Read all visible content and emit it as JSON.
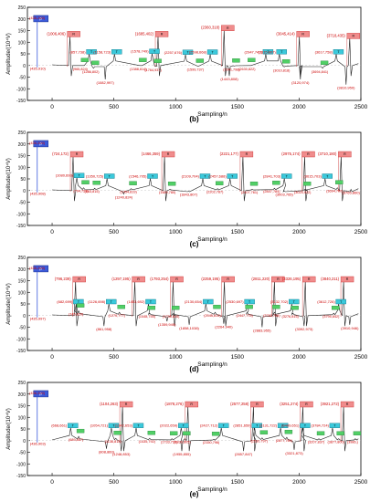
{
  "figure": {
    "panels": [
      "b",
      "c",
      "d",
      "e"
    ]
  },
  "chart_data": [
    {
      "id": "b",
      "caption": "(b)",
      "type": "line",
      "xlabel": "Sampling/n",
      "ylabel": "Amplitude/(10⁴V)",
      "xlim": [
        -200,
        2500
      ],
      "ylim": [
        -150,
        250
      ],
      "xticks": [
        0,
        500,
        1000,
        1500,
        2000,
        2500
      ],
      "yticks": [
        -150,
        -100,
        -50,
        0,
        50,
        100,
        150,
        200,
        250
      ],
      "legend": "P",
      "legend_x": 435,
      "legend_y": 200,
      "x0_label": "(435,910)",
      "top_peaks": [
        [
          145,
          127,
          "(1006,406)"
        ],
        [
          858,
          127,
          "(1685,402)"
        ],
        [
          1393,
          153,
          "(2360,318)"
        ],
        [
          2002,
          127,
          "(3045,414)"
        ],
        [
          2410,
          119,
          "(3718,435)"
        ]
      ],
      "mid_peaks": [
        [
          300,
          49,
          "(857,738)"
        ],
        [
          505,
          49,
          "(1158,723)"
        ],
        [
          810,
          51,
          "(1578,749)"
        ],
        [
          1080,
          47,
          "(2257,676)"
        ],
        [
          1280,
          48,
          "(2598,668)"
        ],
        [
          1730,
          49,
          "(2947,742)"
        ],
        [
          1840,
          49,
          "(3315,807)"
        ],
        [
          2300,
          49,
          "(3617,758)"
        ]
      ],
      "low_peaks": [
        [
          250,
          0,
          "(965,824)"
        ],
        [
          335,
          -12,
          "(1286,802)"
        ],
        [
          720,
          0,
          "(1388,614)"
        ],
        [
          840,
          -4,
          "(1764,937)"
        ],
        [
          1182,
          -3,
          "(1599,737)"
        ],
        [
          1475,
          -2,
          "(2341,798)"
        ],
        [
          1600,
          0,
          "(2630,822)"
        ],
        [
          1880,
          -6,
          "(3010,818)"
        ],
        [
          2190,
          -12,
          "(3694,841)"
        ]
      ],
      "trough_labels": [
        [
          430,
          -60,
          "(1082,997)"
        ],
        [
          1435,
          -45,
          "(1443,808)"
        ],
        [
          2010,
          -60,
          "(3120,974)"
        ],
        [
          2380,
          -82,
          "(3810,950)"
        ]
      ]
    },
    {
      "id": "c",
      "caption": "(c)",
      "type": "line",
      "xlabel": "Sampling/n",
      "ylabel": "Amplitude/(10⁴V)",
      "xlim": [
        -200,
        2500
      ],
      "ylim": [
        -150,
        250
      ],
      "xticks": [
        0,
        500,
        1000,
        1500,
        2000,
        2500
      ],
      "yticks": [
        -150,
        -100,
        -50,
        0,
        50,
        100,
        150,
        200,
        250
      ],
      "legend": "P",
      "legend_x": 435,
      "legend_y": 200,
      "x0_label": "(435,908)",
      "top_peaks": [
        [
          170,
          148,
          "(724,172)"
        ],
        [
          910,
          148,
          "(1466,359)"
        ],
        [
          1545,
          148,
          "(2221,177)"
        ],
        [
          2045,
          148,
          "(2975,174)"
        ],
        [
          2340,
          148,
          "(3710,180)"
        ]
      ],
      "mid_peaks": [
        [
          200,
          55,
          "(1080,693)"
        ],
        [
          445,
          52,
          "(1350,725)"
        ],
        [
          795,
          52,
          "(1546,705)"
        ],
        [
          1220,
          52,
          "(2109,704)"
        ],
        [
          1440,
          52,
          "(2457,688)"
        ],
        [
          1880,
          52,
          "(2841,703)"
        ],
        [
          2210,
          52,
          "(3615,703)"
        ]
      ],
      "low_peaks": [
        [
          255,
          12,
          "(794,729)"
        ],
        [
          345,
          10,
          "(853,815)"
        ],
        [
          640,
          8,
          "(1454,819)"
        ],
        [
          955,
          6,
          "(1489,780)"
        ],
        [
          1340,
          8,
          "(2202,787)"
        ],
        [
          1620,
          6,
          "(2407,761)"
        ],
        [
          1800,
          10,
          "(2847,784)"
        ],
        [
          2050,
          6,
          "(3024,922)"
        ],
        [
          2310,
          12,
          "(3694,790)"
        ]
      ],
      "trough_labels": [
        [
          580,
          -15,
          "(1240,824)"
        ],
        [
          1105,
          -2,
          "(1843,807)"
        ],
        [
          1880,
          -2,
          "(3003,765)"
        ],
        [
          2420,
          5,
          "(3765,860)"
        ]
      ]
    },
    {
      "id": "d",
      "caption": "(d)",
      "type": "line",
      "xlabel": "Sampling/n",
      "ylabel": "Amplitude/(10⁴V)",
      "xlim": [
        -200,
        2500
      ],
      "ylim": [
        -150,
        250
      ],
      "xticks": [
        0,
        500,
        1000,
        1500,
        2000,
        2500
      ],
      "yticks": [
        -150,
        -100,
        -50,
        0,
        50,
        100,
        150,
        200,
        250
      ],
      "legend": "P",
      "legend_x": 435,
      "legend_y": 200,
      "x0_label": "(435,997)",
      "top_peaks": [
        [
          190,
          148,
          "(796,239)"
        ],
        [
          670,
          148,
          "(1297,195)"
        ],
        [
          980,
          148,
          "(1793,254)"
        ],
        [
          1395,
          148,
          "(2259,195)"
        ],
        [
          1800,
          148,
          "(2811,220)"
        ],
        [
          2050,
          148,
          "(3326,195)"
        ],
        [
          2360,
          148,
          "(3840,211)"
        ]
      ],
      "mid_peaks": [
        [
          195,
          50,
          "(682,699)"
        ],
        [
          460,
          50,
          "(1126,698)"
        ],
        [
          780,
          50,
          "(1453,692)"
        ],
        [
          1245,
          50,
          "(2130,654)"
        ],
        [
          1580,
          50,
          "(2530,697)"
        ],
        [
          1940,
          50,
          "(3132,702)"
        ],
        [
          2320,
          50,
          "(3612,726)"
        ]
      ],
      "low_peaks": [
        [
          215,
          20,
          "(745,820)"
        ],
        [
          545,
          14,
          "(1270,777)"
        ],
        [
          790,
          10,
          "(1448,755)"
        ],
        [
          985,
          10,
          "(1735,815)"
        ],
        [
          1320,
          14,
          "(2045,814)"
        ],
        [
          1580,
          14,
          "(2447,775)"
        ],
        [
          1800,
          14,
          "(2762,758)"
        ],
        [
          1950,
          10,
          "(3276,815)"
        ],
        [
          2280,
          10,
          "(3795,842)"
        ]
      ],
      "trough_labels": [
        [
          420,
          -45,
          "(861,958)"
        ],
        [
          930,
          -25,
          "(1359,949)"
        ],
        [
          1110,
          -40,
          "(1858,1038)"
        ],
        [
          1390,
          -35,
          "(2264,940)"
        ],
        [
          1700,
          -50,
          "(2883,955)"
        ],
        [
          2040,
          -45,
          "(3392,973)"
        ],
        [
          2410,
          -40,
          "(3910,946)"
        ]
      ]
    },
    {
      "id": "e",
      "caption": "(e)",
      "type": "line",
      "xlabel": "Sampling/n",
      "ylabel": "Amplitude/(10⁴V)",
      "xlim": [
        -200,
        2500
      ],
      "ylim": [
        -150,
        250
      ],
      "xticks": [
        0,
        500,
        1000,
        1500,
        2000,
        2500
      ],
      "yticks": [
        -150,
        -100,
        -50,
        0,
        50,
        100,
        150,
        200,
        250
      ],
      "legend": "P",
      "legend_x": 436,
      "legend_y": 200,
      "x0_label": "(436,903)",
      "top_peaks": [
        [
          570,
          148,
          "(1104,263)"
        ],
        [
          1100,
          148,
          "(1878,276)"
        ],
        [
          1630,
          148,
          "(2577,258)"
        ],
        [
          2030,
          148,
          "(3251,274)"
        ],
        [
          2360,
          148,
          "(3921,272)"
        ]
      ],
      "mid_peaks": [
        [
          150,
          55,
          "(668,661)"
        ],
        [
          480,
          55,
          "(1054,721)"
        ],
        [
          680,
          55,
          "(1342,653)"
        ],
        [
          1045,
          55,
          "(2022,659)"
        ],
        [
          1370,
          55,
          "(2427,712)"
        ],
        [
          1640,
          55,
          "(2851,659)"
        ],
        [
          1850,
          55,
          "(3131,722)"
        ],
        [
          2030,
          55,
          "(3409,651)"
        ],
        [
          2270,
          55,
          "(3784,724)"
        ]
      ],
      "low_peaks": [
        [
          215,
          18,
          "(689,857)"
        ],
        [
          515,
          10,
          "(1136,815)"
        ],
        [
          790,
          10,
          "(1435,792)"
        ],
        [
          970,
          8,
          "(1733,716)"
        ],
        [
          1075,
          8,
          "(1839,805)"
        ],
        [
          1310,
          6,
          "(2150,796)"
        ],
        [
          1700,
          12,
          "(2530,797)"
        ],
        [
          1900,
          14,
          "(2877,789)"
        ],
        [
          2160,
          8,
          "(3207,837)"
        ],
        [
          2320,
          8,
          "(3877,800)"
        ],
        [
          2455,
          8,
          "(3986,)"
        ]
      ],
      "trough_labels": [
        [
          440,
          -35,
          "(808,860)"
        ],
        [
          560,
          -45,
          "(1248,853)"
        ],
        [
          1050,
          -45,
          "(1955,855)"
        ],
        [
          1550,
          -45,
          "(2657,847)"
        ],
        [
          1960,
          -40,
          "(3321,873)"
        ]
      ]
    }
  ]
}
